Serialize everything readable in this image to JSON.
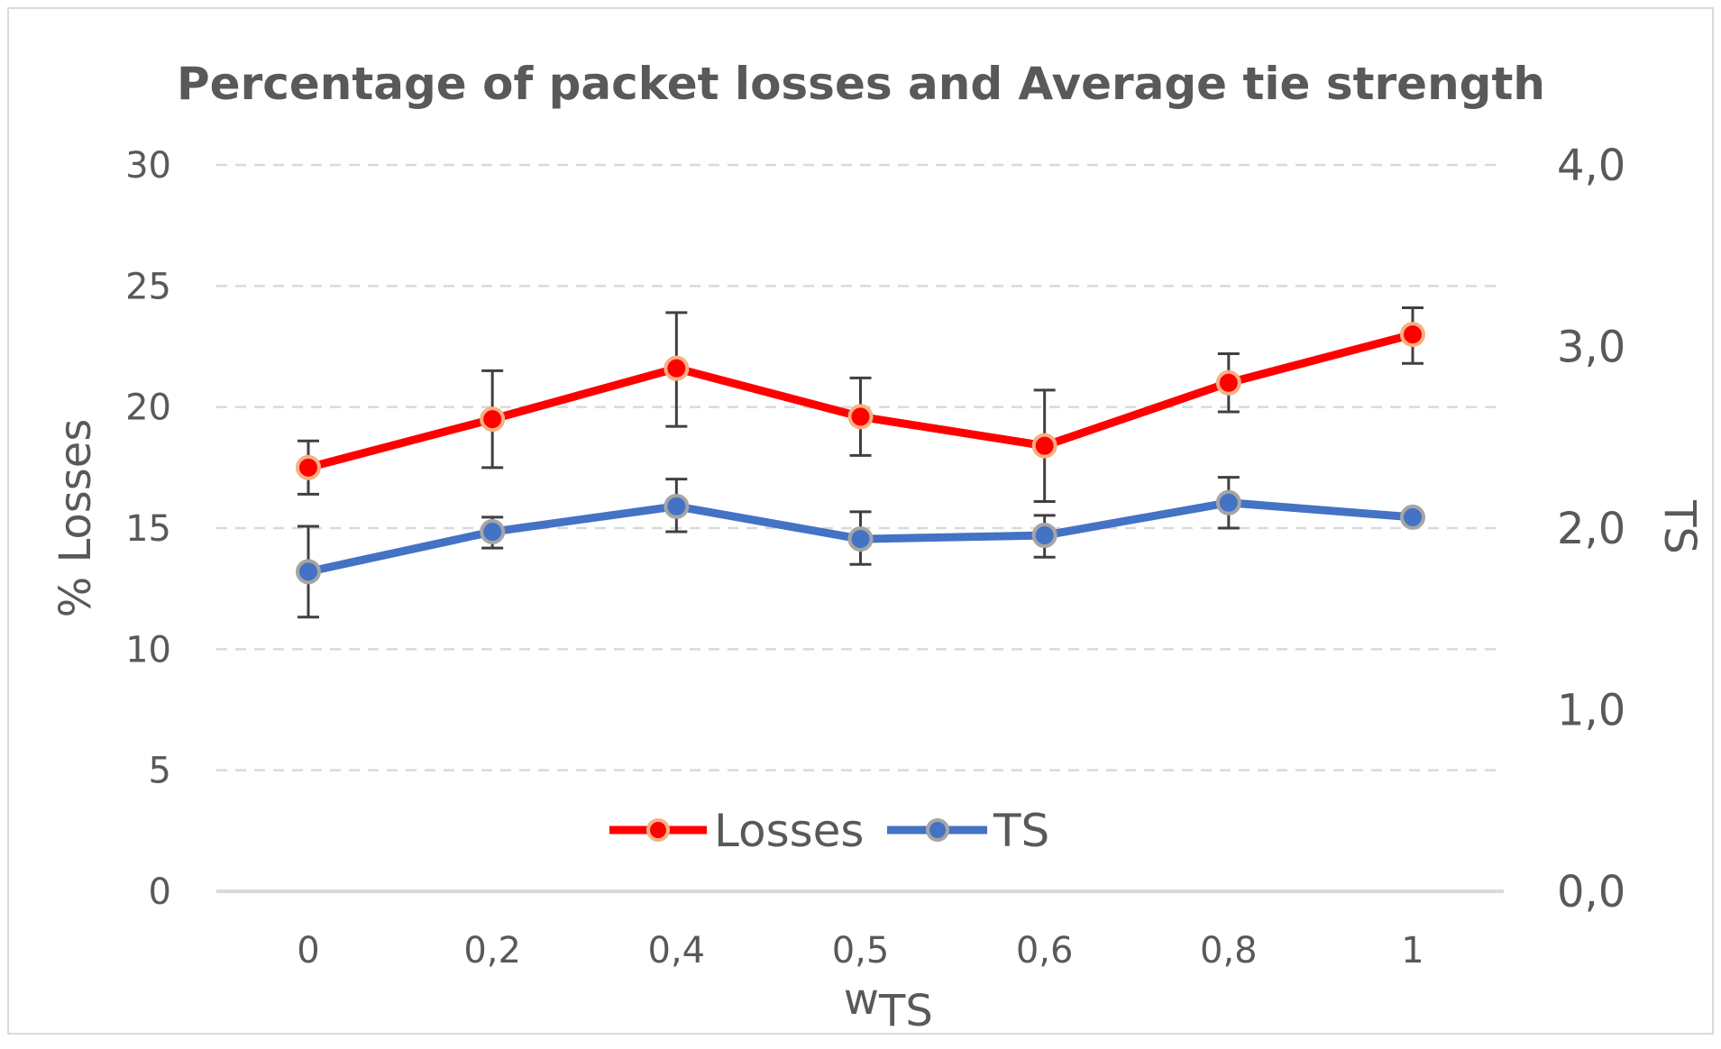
{
  "chart_data": {
    "type": "line",
    "title": "Percentage of packet losses and Average tie strength",
    "categories": [
      "0",
      "0,2",
      "0,4",
      "0,5",
      "0,6",
      "0,8",
      "1"
    ],
    "xlabel": "w",
    "xlabel_sub": "TS",
    "ylabel_left": "% Losses",
    "ylabel_right": "TS",
    "ylim_left": [
      0,
      30
    ],
    "ylim_right": [
      0,
      4
    ],
    "yticks_left": [
      "0",
      "5",
      "10",
      "15",
      "20",
      "25",
      "30"
    ],
    "yticks_right": [
      "0,0",
      "1,0",
      "2,0",
      "3,0",
      "4,0"
    ],
    "grid": true,
    "legend_position": "bottom-center",
    "series": [
      {
        "name": "Losses",
        "axis": "left",
        "color": "#ff0000",
        "marker_color": "#ff0000",
        "marker_edge": "#f4b183",
        "values": [
          17.5,
          19.5,
          21.6,
          19.6,
          18.4,
          21.0,
          23.0
        ],
        "err_low": [
          16.4,
          17.5,
          19.2,
          18.0,
          16.1,
          19.8,
          21.8
        ],
        "err_high": [
          18.6,
          21.5,
          23.9,
          21.2,
          20.7,
          22.2,
          24.1
        ]
      },
      {
        "name": "TS",
        "axis": "right",
        "color": "#4472c4",
        "marker_color": "#4472c4",
        "marker_edge": "#a5a5a5",
        "values": [
          1.76,
          1.98,
          2.12,
          1.94,
          1.96,
          2.14,
          2.06
        ],
        "err_low": [
          1.51,
          1.89,
          1.98,
          1.8,
          1.84,
          2.0,
          2.06
        ],
        "err_high": [
          2.01,
          2.06,
          2.27,
          2.09,
          2.07,
          2.28,
          2.06
        ]
      }
    ]
  }
}
